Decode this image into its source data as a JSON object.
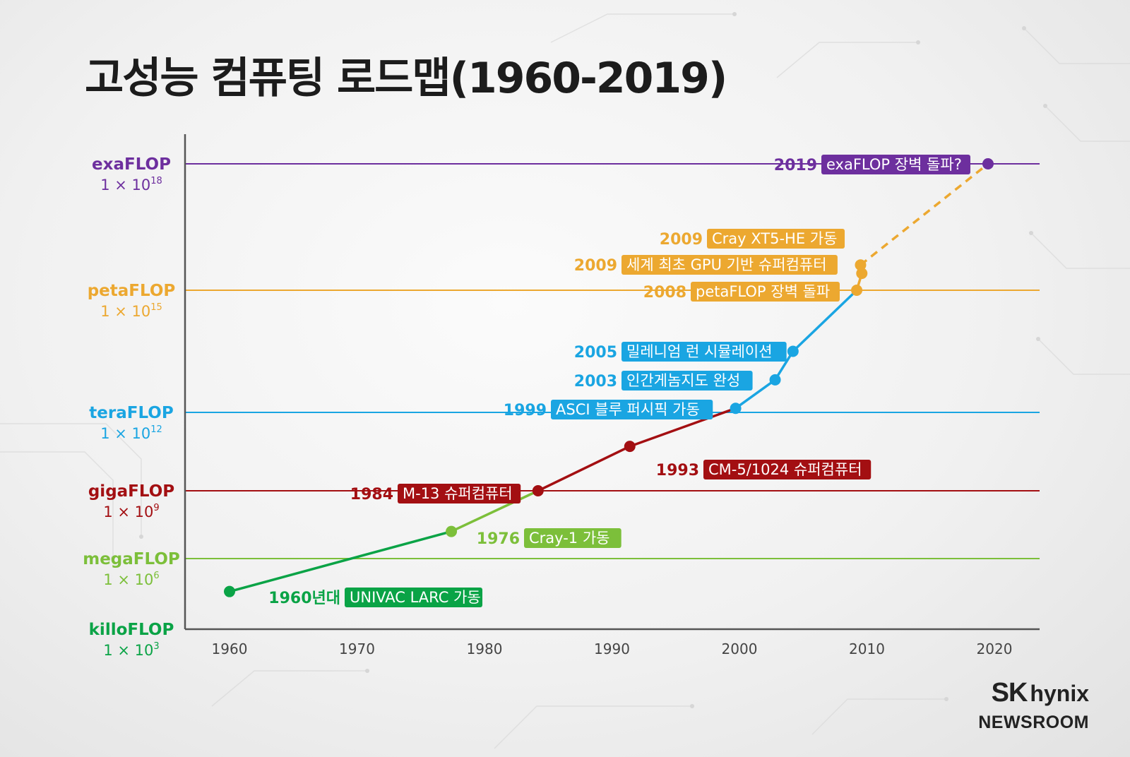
{
  "title": "고성능 컴퓨팅 로드맵(1960-2019)",
  "brand": {
    "sk": "SK",
    "hynix": "hynix",
    "newsroom": "NEWSROOM"
  },
  "chart_data": {
    "type": "line",
    "xlabel": "",
    "ylabel": "",
    "xlim": [
      1956.5,
      2023.5
    ],
    "x_ticks": [
      1960,
      1970,
      1980,
      1990,
      2000,
      2010,
      2020
    ],
    "grid": false,
    "legend": "none",
    "levels": [
      {
        "name": "exaFLOP",
        "value_label": "1 × 10",
        "exp": "18",
        "log10": 18,
        "color": "#6d2f9e"
      },
      {
        "name": "petaFLOP",
        "value_label": "1 × 10",
        "exp": "15",
        "log10": 15,
        "color": "#eca830"
      },
      {
        "name": "teraFLOP",
        "value_label": "1 × 10",
        "exp": "12",
        "log10": 12,
        "color": "#1aa5e2"
      },
      {
        "name": "gigaFLOP",
        "value_label": "1 × 10",
        "exp": "9",
        "log10": 9,
        "color": "#a30f12"
      },
      {
        "name": "megaFLOP",
        "value_label": "1 × 10",
        "exp": "6",
        "log10": 6,
        "color": "#7cbf3a"
      },
      {
        "name": "killoFLOP",
        "value_label": "1 × 10",
        "exp": "3",
        "log10": 3,
        "color": "#0aa346"
      }
    ],
    "milestones": [
      {
        "year": "1960년대",
        "x": 1960,
        "log10": 4.6,
        "label": "UNIVAC LARC 가동",
        "color": "#0aa346",
        "yearColor": "#0aa346",
        "side": "right"
      },
      {
        "year": "1976",
        "x": 1977.4,
        "log10": 7.2,
        "label": "Cray-1 가동",
        "color": "#7cbf3a",
        "yearColor": "#7cbf3a",
        "side": "right"
      },
      {
        "year": "1984",
        "x": 1984.2,
        "log10": 9.0,
        "label": "M-13 슈퍼컴퓨터",
        "color": "#a30f12",
        "yearColor": "#a30f12",
        "side": "left"
      },
      {
        "year": "1993",
        "x": 1991.4,
        "log10": 10.7,
        "label": "CM-5/1024 슈퍼컴퓨터",
        "color": "#a30f12",
        "yearColor": "#a30f12",
        "side": "right"
      },
      {
        "year": "1999",
        "x": 1999.7,
        "log10": 12.1,
        "label": "ASCI 블루 퍼시픽 가동",
        "color": "#1aa5e2",
        "yearColor": "#1aa5e2",
        "side": "left"
      },
      {
        "year": "2003",
        "x": 2002.8,
        "log10": 12.8,
        "label": "인간게놈지도 완성",
        "color": "#1aa5e2",
        "yearColor": "#1aa5e2",
        "side": "left"
      },
      {
        "year": "2005",
        "x": 2004.2,
        "log10": 13.5,
        "label": "밀레니엄 런 시뮬레이션",
        "color": "#1aa5e2",
        "yearColor": "#1aa5e2",
        "side": "left"
      },
      {
        "year": "2008",
        "x": 2009.2,
        "log10": 15.0,
        "label": "petaFLOP 장벽 돌파",
        "color": "#eca830",
        "yearColor": "#eca830",
        "side": "left"
      },
      {
        "year": "2009",
        "x": 2009.6,
        "log10": 15.4,
        "label": "세계 최초 GPU 기반 슈퍼컴퓨터",
        "color": "#eca830",
        "yearColor": "#eca830",
        "side": "left"
      },
      {
        "year": "2009",
        "x": 2009.5,
        "log10": 15.6,
        "label": "Cray XT5-HE 가동",
        "color": "#eca830",
        "yearColor": "#eca830",
        "side": "left"
      },
      {
        "year": "2019",
        "x": 2019.5,
        "log10": 18.0,
        "label": "exaFLOP 장벽 돌파?",
        "color": "#6d2f9e",
        "yearColor": "#6d2f9e",
        "side": "left"
      }
    ],
    "series": [
      {
        "color": "#0aa346",
        "dashed": false,
        "x": [
          1960,
          1977.4
        ],
        "log10": [
          4.6,
          7.2
        ]
      },
      {
        "color": "#7cbf3a",
        "dashed": false,
        "x": [
          1977.4,
          1984.2
        ],
        "log10": [
          7.2,
          9.0
        ]
      },
      {
        "color": "#a30f12",
        "dashed": false,
        "x": [
          1984.2,
          1991.4,
          1999.7
        ],
        "log10": [
          9.0,
          10.7,
          12.1
        ]
      },
      {
        "color": "#1aa5e2",
        "dashed": false,
        "x": [
          1999.7,
          2002.8,
          2004.2,
          2009.2
        ],
        "log10": [
          12.1,
          12.8,
          13.5,
          15.0
        ]
      },
      {
        "color": "#eca830",
        "dashed": false,
        "x": [
          2009.2,
          2009.6,
          2009.5
        ],
        "log10": [
          15.0,
          15.4,
          15.6
        ]
      },
      {
        "color": "#eca830",
        "dashed": true,
        "x": [
          2009.5,
          2019.5
        ],
        "log10": [
          15.6,
          18.0
        ]
      }
    ]
  }
}
